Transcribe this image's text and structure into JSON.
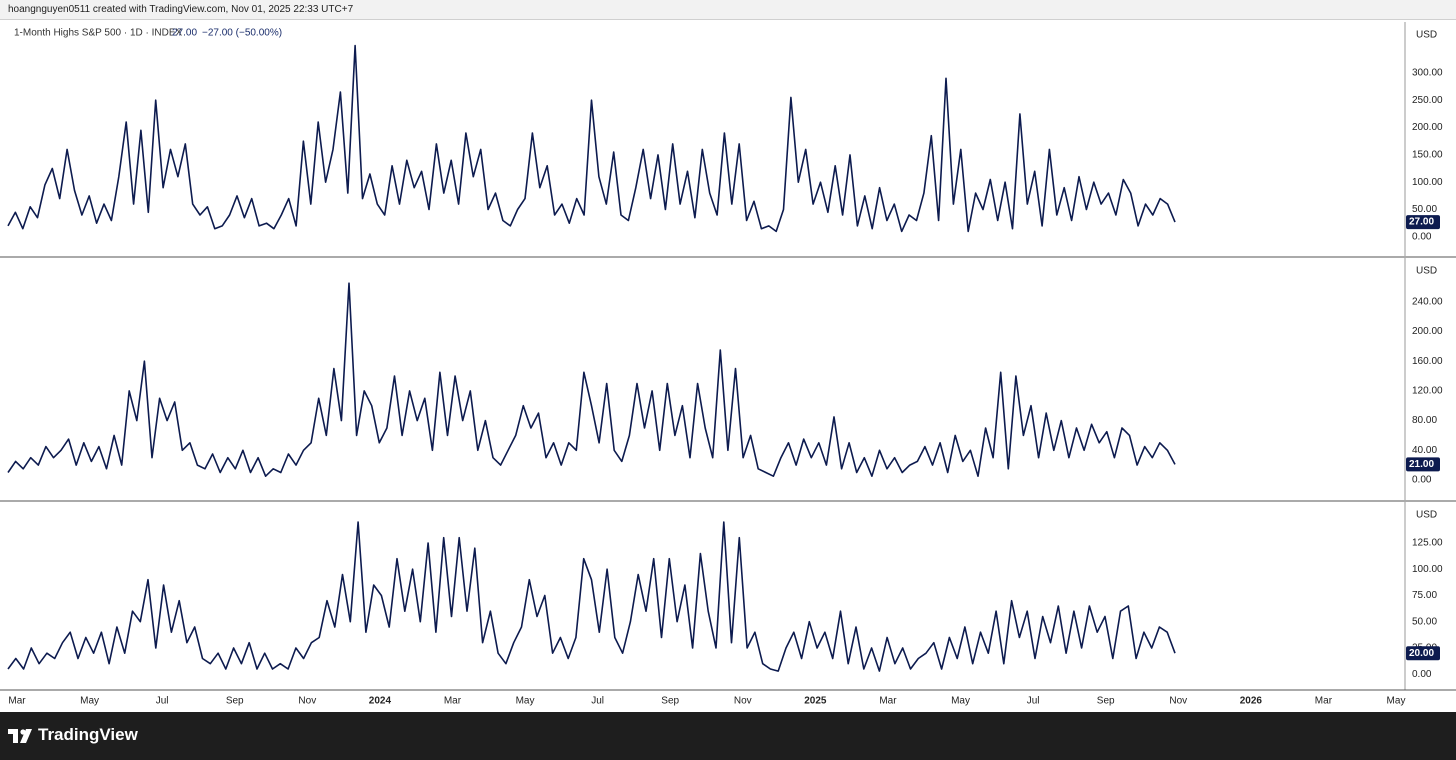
{
  "header": "hoangnguyen0511 created with TradingView.com, Nov 01, 2025 22:33 UTC+7",
  "brand": "TradingView",
  "currency": "USD",
  "x_labels": [
    "Mar",
    "May",
    "Jul",
    "Sep",
    "Nov",
    "2024",
    "Mar",
    "May",
    "Jul",
    "Sep",
    "Nov",
    "2025",
    "Mar",
    "May",
    "Jul",
    "Sep",
    "Nov",
    "2026",
    "Mar",
    "May"
  ],
  "chart_data": [
    {
      "type": "line",
      "title": "1-Month Highs S&P 500 · 1D · INDEX",
      "legend": {
        "value": "27.00",
        "change": "−27.00 (−50.00%)"
      },
      "color": "#0d1b4f",
      "ylim": [
        -35,
        393
      ],
      "yticks": [
        {
          "value": 0,
          "label": "0.00"
        },
        {
          "value": 50,
          "label": "50.00"
        },
        {
          "value": 100,
          "label": "100.00"
        },
        {
          "value": 150,
          "label": "150.00"
        },
        {
          "value": 200,
          "label": "200.00"
        },
        {
          "value": 250,
          "label": "250.00"
        },
        {
          "value": 300,
          "label": "300.00"
        }
      ],
      "last_label": {
        "value": 27,
        "label": "27.00"
      },
      "values": [
        20,
        45,
        15,
        55,
        35,
        95,
        125,
        70,
        160,
        85,
        40,
        75,
        25,
        60,
        30,
        110,
        210,
        60,
        195,
        45,
        250,
        90,
        160,
        110,
        170,
        60,
        40,
        55,
        15,
        20,
        40,
        75,
        35,
        70,
        20,
        25,
        15,
        40,
        70,
        20,
        175,
        60,
        210,
        100,
        160,
        265,
        80,
        350,
        70,
        115,
        60,
        40,
        130,
        60,
        140,
        90,
        120,
        50,
        170,
        80,
        140,
        60,
        190,
        110,
        160,
        50,
        80,
        30,
        20,
        50,
        70,
        190,
        90,
        130,
        40,
        60,
        25,
        70,
        40,
        250,
        110,
        60,
        155,
        40,
        30,
        90,
        160,
        70,
        150,
        50,
        170,
        60,
        120,
        35,
        160,
        80,
        40,
        190,
        60,
        170,
        30,
        65,
        15,
        20,
        10,
        50,
        255,
        100,
        160,
        60,
        100,
        45,
        130,
        40,
        150,
        20,
        75,
        15,
        90,
        30,
        60,
        10,
        40,
        30,
        80,
        185,
        30,
        290,
        60,
        160,
        10,
        80,
        50,
        105,
        30,
        100,
        15,
        225,
        60,
        120,
        20,
        160,
        40,
        90,
        30,
        110,
        50,
        100,
        60,
        80,
        40,
        105,
        80,
        20,
        60,
        40,
        70,
        60,
        27
      ]
    },
    {
      "type": "line",
      "color": "#0d1b4f",
      "ylim": [
        -27,
        299
      ],
      "yticks": [
        {
          "value": 0,
          "label": "0.00"
        },
        {
          "value": 40,
          "label": "40.00"
        },
        {
          "value": 80,
          "label": "80.00"
        },
        {
          "value": 120,
          "label": "120.00"
        },
        {
          "value": 160,
          "label": "160.00"
        },
        {
          "value": 200,
          "label": "200.00"
        },
        {
          "value": 240,
          "label": "240.00"
        }
      ],
      "last_label": {
        "value": 21,
        "label": "21.00"
      },
      "values": [
        10,
        25,
        15,
        30,
        20,
        45,
        30,
        40,
        55,
        20,
        50,
        25,
        45,
        15,
        60,
        20,
        120,
        80,
        160,
        30,
        110,
        80,
        105,
        40,
        50,
        20,
        15,
        35,
        10,
        30,
        15,
        40,
        10,
        30,
        5,
        15,
        10,
        35,
        20,
        40,
        50,
        110,
        60,
        150,
        80,
        265,
        60,
        120,
        100,
        50,
        70,
        140,
        60,
        120,
        80,
        110,
        40,
        145,
        60,
        140,
        80,
        120,
        40,
        80,
        30,
        20,
        40,
        60,
        100,
        70,
        90,
        30,
        50,
        20,
        50,
        40,
        145,
        100,
        50,
        130,
        40,
        25,
        60,
        130,
        70,
        120,
        40,
        130,
        60,
        100,
        30,
        130,
        70,
        30,
        175,
        40,
        150,
        30,
        60,
        15,
        10,
        5,
        30,
        50,
        20,
        55,
        30,
        50,
        20,
        85,
        15,
        50,
        10,
        30,
        5,
        40,
        15,
        30,
        10,
        20,
        25,
        45,
        20,
        50,
        10,
        60,
        25,
        40,
        5,
        70,
        30,
        145,
        15,
        140,
        60,
        100,
        30,
        90,
        40,
        80,
        30,
        70,
        40,
        75,
        50,
        65,
        30,
        70,
        60,
        20,
        45,
        30,
        50,
        40,
        21
      ]
    },
    {
      "type": "line",
      "color": "#0d1b4f",
      "ylim": [
        -15,
        164
      ],
      "yticks": [
        {
          "value": 0,
          "label": "0.00"
        },
        {
          "value": 25,
          "label": "25.00"
        },
        {
          "value": 50,
          "label": "50.00"
        },
        {
          "value": 75,
          "label": "75.00"
        },
        {
          "value": 100,
          "label": "100.00"
        },
        {
          "value": 125,
          "label": "125.00"
        }
      ],
      "last_label": {
        "value": 20,
        "label": "20.00"
      },
      "values": [
        5,
        15,
        5,
        25,
        10,
        20,
        15,
        30,
        40,
        15,
        35,
        20,
        40,
        10,
        45,
        20,
        60,
        50,
        90,
        25,
        85,
        40,
        70,
        30,
        45,
        15,
        10,
        20,
        5,
        25,
        10,
        30,
        5,
        20,
        5,
        10,
        5,
        25,
        15,
        30,
        35,
        70,
        45,
        95,
        50,
        145,
        40,
        85,
        75,
        45,
        110,
        60,
        100,
        50,
        125,
        40,
        130,
        55,
        130,
        60,
        120,
        30,
        60,
        20,
        10,
        30,
        45,
        90,
        55,
        75,
        20,
        35,
        15,
        35,
        110,
        90,
        40,
        100,
        35,
        20,
        50,
        95,
        60,
        110,
        35,
        110,
        50,
        85,
        25,
        115,
        60,
        25,
        145,
        30,
        130,
        25,
        40,
        10,
        5,
        3,
        25,
        40,
        15,
        50,
        25,
        40,
        15,
        60,
        10,
        45,
        5,
        25,
        3,
        35,
        10,
        25,
        5,
        15,
        20,
        30,
        5,
        35,
        15,
        45,
        10,
        40,
        20,
        60,
        10,
        70,
        35,
        60,
        15,
        55,
        30,
        65,
        20,
        60,
        25,
        65,
        40,
        55,
        15,
        60,
        65,
        15,
        40,
        25,
        45,
        40,
        20
      ]
    }
  ]
}
